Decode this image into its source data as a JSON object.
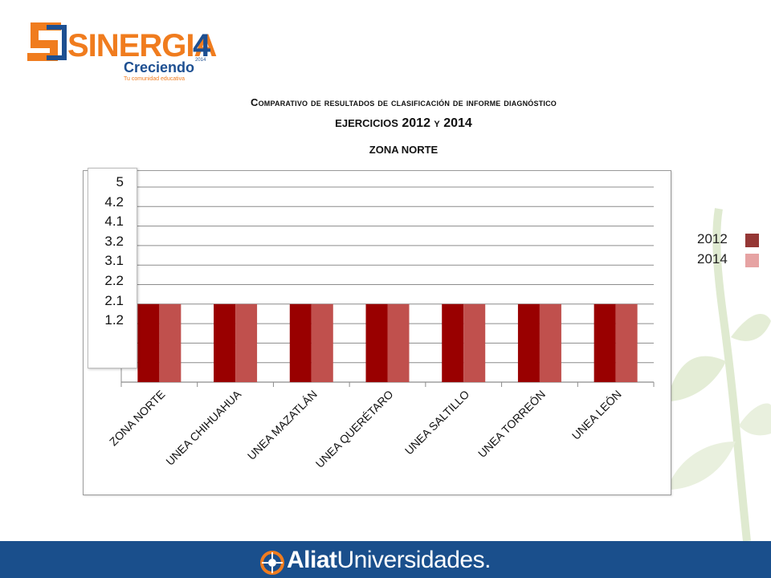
{
  "logo": {
    "brand": "SINERGIA",
    "brand_digit": "4",
    "brand_year": "2014",
    "tagline": "Creciendo",
    "subtagline": "Tu comunidad educativa"
  },
  "header": {
    "title_line1": "Comparativo de resultados de clasificación de informe diagnóstico",
    "title_line2_a": "ejercicios",
    "title_line2_b": "2012",
    "title_line2_c": "y",
    "title_line2_d": "2014",
    "title_line3": "ZONA NORTE"
  },
  "yaxis_box": [
    "5",
    "4.2",
    "4.1",
    "3.2",
    "3.1",
    "2.2",
    "2.1",
    "1.2"
  ],
  "chart_data": {
    "type": "bar",
    "categories": [
      "ZONA NORTE",
      "UNEA CHIHUAHUA",
      "UNEA MAZATLÁN",
      "UNEA QUERÉTARO",
      "UNEA SALTILLO",
      "UNEA TORREÓN",
      "UNEA LEÓN"
    ],
    "series": [
      {
        "name": "2012",
        "values": [
          4,
          4,
          4,
          4,
          4,
          4,
          4
        ],
        "color": "#990000"
      },
      {
        "name": "2014",
        "values": [
          4,
          4,
          4,
          4,
          4,
          4,
          4
        ],
        "color": "#c0504d"
      }
    ],
    "ylim": [
      0,
      10
    ],
    "grid": true,
    "legend_position": "right",
    "legend_swatch_colors": [
      "#953735",
      "#e6a3a3"
    ]
  },
  "footer": {
    "brand_a": "Aliat",
    "brand_b": "Universidades."
  },
  "colors": {
    "footer_bg": "#1a4f8c",
    "logo_orange": "#f07c1e",
    "logo_blue": "#1d4f91"
  }
}
